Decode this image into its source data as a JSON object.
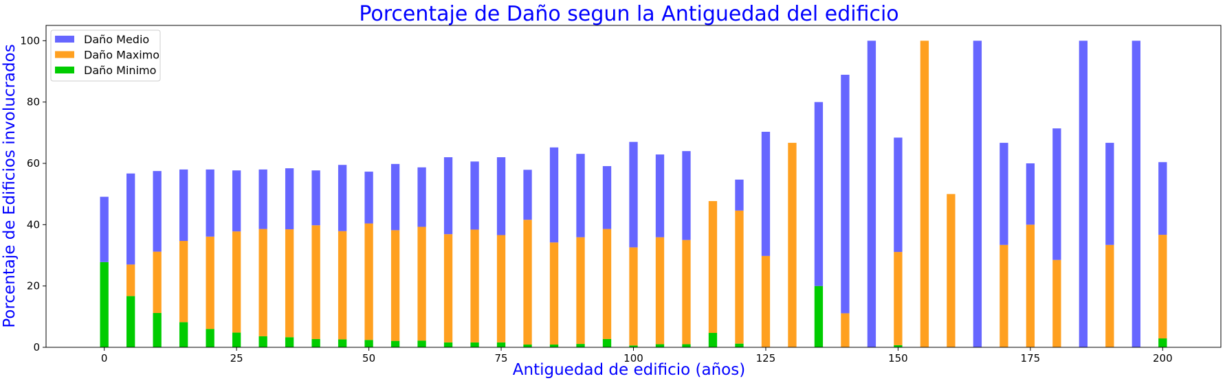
{
  "chart_data": {
    "type": "bar",
    "title": "Porcentaje de Daño segun la Antiguedad del edificio",
    "xlabel": "Antiguedad de edificio (años)",
    "ylabel": "Porcentaje de Edificios involucrados",
    "xlim": [
      -11,
      211
    ],
    "ylim": [
      0,
      105
    ],
    "xticks": [
      0,
      25,
      50,
      75,
      100,
      125,
      150,
      175,
      200
    ],
    "yticks": [
      0,
      20,
      40,
      60,
      80,
      100
    ],
    "legend_position": "upper-left",
    "colors": {
      "title": "#0000ff",
      "axis_label": "#0000ff"
    },
    "x": [
      0,
      5,
      10,
      15,
      20,
      25,
      30,
      35,
      40,
      45,
      50,
      55,
      60,
      65,
      70,
      75,
      80,
      85,
      90,
      95,
      100,
      105,
      110,
      115,
      120,
      125,
      130,
      135,
      140,
      145,
      150,
      155,
      160,
      165,
      170,
      175,
      180,
      185,
      190,
      195,
      200
    ],
    "series": [
      {
        "name": "Daño Medio",
        "color": "#6666ff",
        "values": [
          21.3,
          29.7,
          26.3,
          23.3,
          21.9,
          19.9,
          19.4,
          19.9,
          17.9,
          21.6,
          16.9,
          21.6,
          19.4,
          25.1,
          22.2,
          25.4,
          16.3,
          31.0,
          27.2,
          20.5,
          34.4,
          27.0,
          29.0,
          0,
          10.1,
          40.5,
          0,
          60.0,
          77.8,
          100,
          37.3,
          0,
          0,
          100,
          33.3,
          20.0,
          42.9,
          100,
          33.3,
          100,
          23.7
        ]
      },
      {
        "name": "Daño Maximo",
        "color": "#ffa020",
        "values": [
          0,
          10.3,
          20.0,
          26.5,
          30.1,
          33.0,
          35.0,
          35.2,
          37.1,
          35.3,
          38.0,
          36.1,
          37.1,
          35.3,
          36.8,
          35.0,
          40.7,
          33.3,
          34.8,
          35.9,
          32.0,
          34.9,
          34.0,
          43.0,
          43.4,
          29.8,
          66.7,
          0,
          11.1,
          0,
          30.4,
          100,
          50.0,
          0,
          33.4,
          40.0,
          28.5,
          0,
          33.4,
          0,
          33.8
        ]
      },
      {
        "name": "Daño Minimo",
        "color": "#00cc00",
        "values": [
          27.8,
          16.7,
          11.2,
          8.2,
          6.0,
          4.8,
          3.6,
          3.3,
          2.7,
          2.6,
          2.4,
          2.1,
          2.2,
          1.6,
          1.6,
          1.6,
          0.9,
          0.9,
          1.1,
          2.7,
          0.6,
          1.0,
          1.0,
          4.7,
          1.2,
          0,
          0,
          20.0,
          0,
          0,
          0.7,
          0,
          0,
          0,
          0,
          0,
          0,
          0,
          0,
          0,
          2.9
        ]
      }
    ]
  }
}
